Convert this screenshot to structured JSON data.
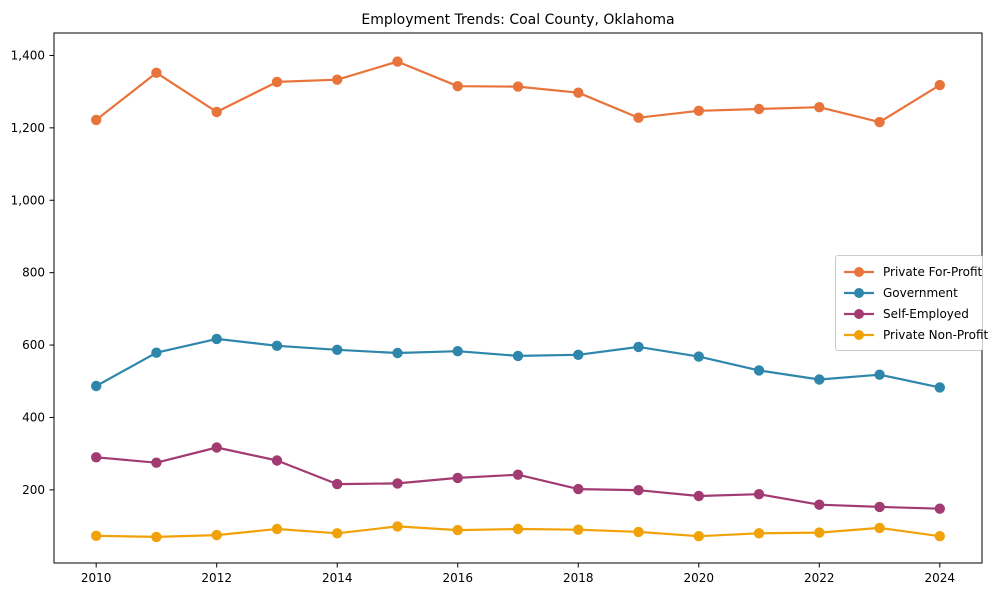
{
  "figure": {
    "background_color": "#ffffff",
    "axis_color": "#000000",
    "tick_label_color": "#000000",
    "legend_border_color": "#cccccc",
    "legend_background_color": "#ffffff"
  },
  "chart_data": {
    "type": "line",
    "title": "Employment Trends: Coal County, Oklahoma",
    "xlabel": "",
    "ylabel": "",
    "grid": false,
    "legend_position": "center-right",
    "xlim": [
      2009.3,
      2024.7
    ],
    "ylim": [
      -2,
      1462
    ],
    "x": [
      2010,
      2011,
      2012,
      2013,
      2014,
      2015,
      2016,
      2017,
      2018,
      2019,
      2020,
      2021,
      2022,
      2023,
      2024
    ],
    "x_ticks": {
      "values": [
        2010,
        2012,
        2014,
        2016,
        2018,
        2020,
        2022,
        2024
      ],
      "labels": [
        "2010",
        "2012",
        "2014",
        "2016",
        "2018",
        "2020",
        "2022",
        "2024"
      ]
    },
    "y_ticks": {
      "values": [
        200,
        400,
        600,
        800,
        1000,
        1200,
        1400
      ],
      "labels": [
        "200",
        "400",
        "600",
        "800",
        "1,000",
        "1,200",
        "1,400"
      ]
    },
    "series": [
      {
        "name": "Private For-Profit",
        "color": "#E8743B",
        "marker": "circle",
        "values": [
          1222,
          1352,
          1244,
          1327,
          1333,
          1383,
          1315,
          1314,
          1297,
          1228,
          1247,
          1252,
          1257,
          1216,
          1318
        ]
      },
      {
        "name": "Government",
        "color": "#2E86AB",
        "marker": "circle",
        "values": [
          487,
          579,
          617,
          598,
          587,
          578,
          583,
          570,
          573,
          595,
          568,
          530,
          505,
          518,
          483
        ]
      },
      {
        "name": "Self-Employed",
        "color": "#A23B72",
        "marker": "circle",
        "values": [
          290,
          275,
          317,
          281,
          216,
          218,
          233,
          242,
          202,
          199,
          183,
          188,
          159,
          153,
          148
        ]
      },
      {
        "name": "Private Non-Profit",
        "color": "#F1A208",
        "marker": "circle",
        "values": [
          73,
          70,
          75,
          92,
          80,
          99,
          89,
          92,
          90,
          84,
          72,
          80,
          82,
          95,
          72
        ]
      }
    ]
  }
}
